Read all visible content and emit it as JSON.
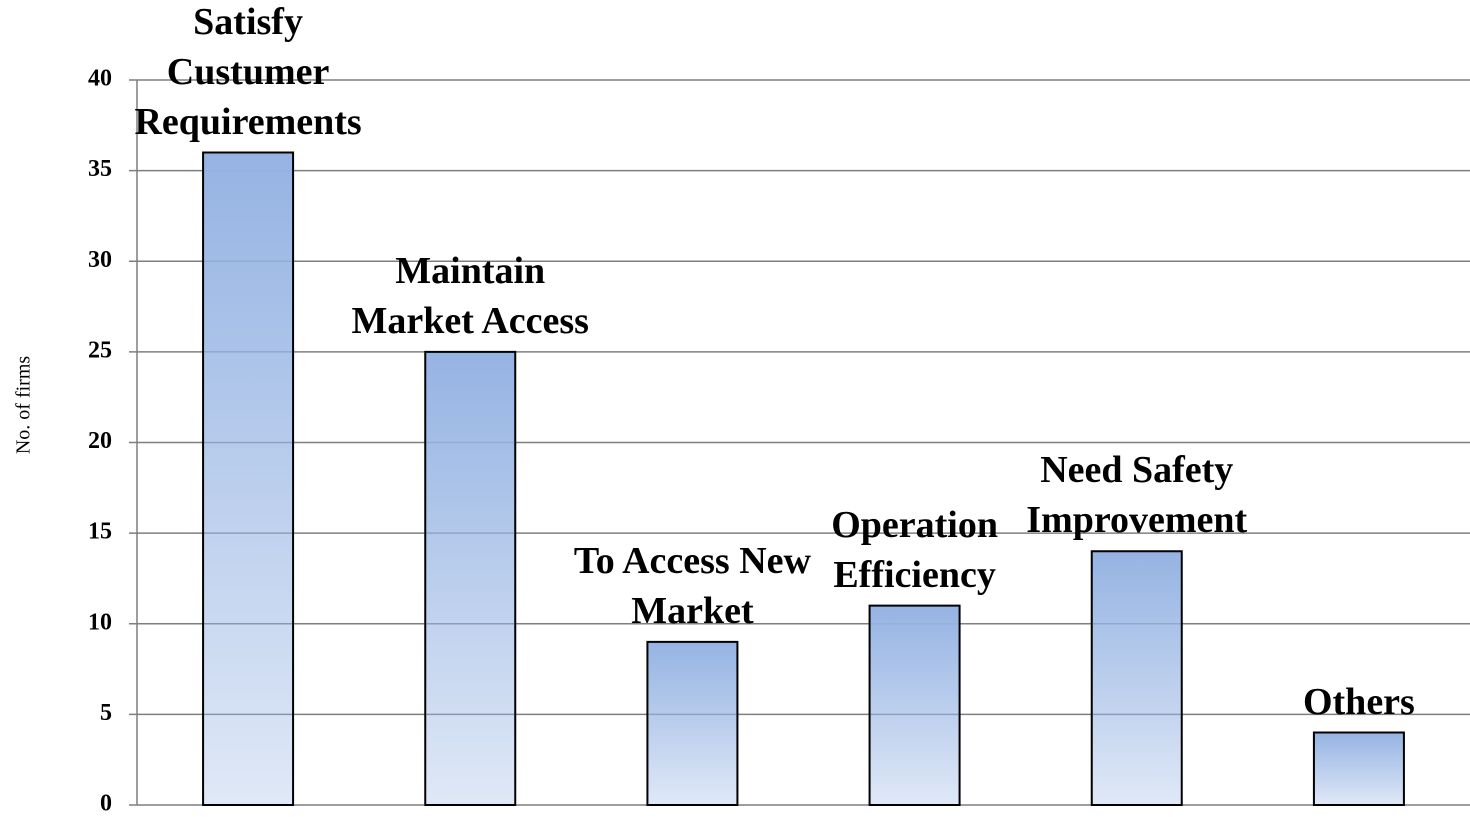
{
  "chart_data": {
    "type": "bar",
    "y_label": "No. of firms",
    "categories": [
      "Satisfy\nCustumer\nRequirements",
      "Maintain\nMarket Access",
      "To Access New\nMarket",
      "Operation\nEfficiency",
      "Need Safety\nImprovement",
      "Others"
    ],
    "values": [
      36,
      25,
      9,
      11,
      14,
      4
    ],
    "color": "#95b3e3",
    "ylim": [
      0,
      40
    ],
    "yticks": [
      0,
      5,
      10,
      15,
      20,
      25,
      30,
      35,
      40
    ],
    "grid": true
  }
}
